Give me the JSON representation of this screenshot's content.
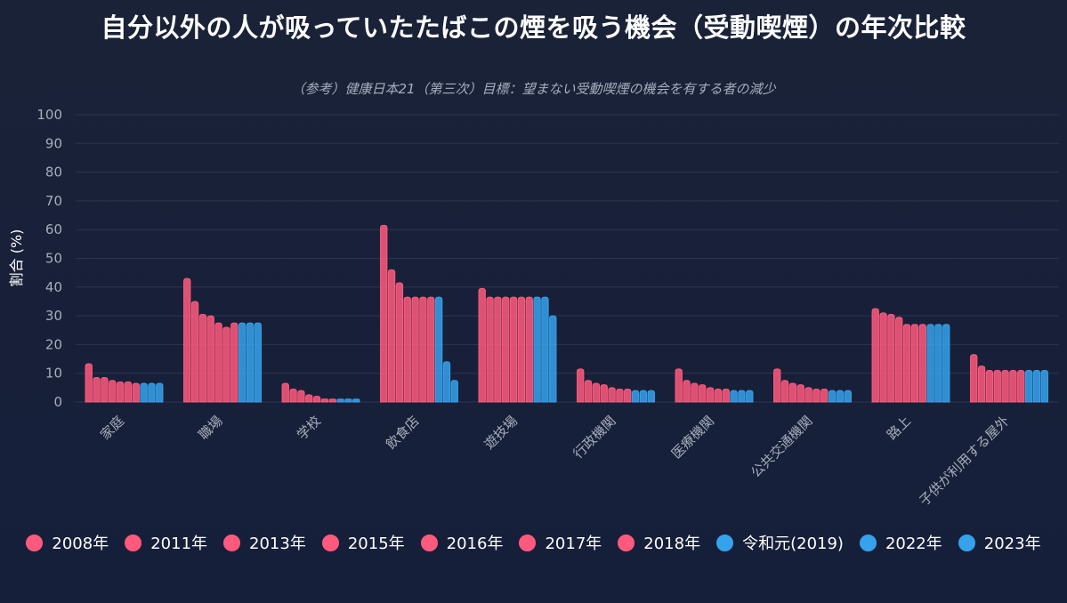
{
  "chart_data": {
    "type": "bar",
    "title": "自分以外の人が吸っていたたばこの煙を吸う機会（受動喫煙）の年次比較",
    "subtitle": "（参考）健康日本21（第三次）目標：望まない受動喫煙の機会を有する者の減少",
    "xlabel": "",
    "ylabel": "割合 (%)",
    "ylim": [
      0,
      100
    ],
    "yticks": [
      0,
      10,
      20,
      30,
      40,
      50,
      60,
      70,
      80,
      90,
      100
    ],
    "grid": true,
    "legend_position": "bottom",
    "categories": [
      "家庭",
      "職場",
      "学校",
      "飲食店",
      "遊技場",
      "行政機関",
      "医療機関",
      "公共交通機関",
      "路上",
      "子供が利用する屋外"
    ],
    "series": [
      {
        "name": "2008年",
        "values": [
          13.3,
          43.0,
          6.5,
          61.5,
          39.5,
          11.5,
          11.5,
          11.5,
          32.5,
          16.5
        ],
        "color": "#ff5a7e"
      },
      {
        "name": "2011年",
        "values": [
          8.5,
          35.0,
          4.5,
          46.0,
          36.5,
          7.5,
          7.5,
          7.5,
          31.0,
          12.5
        ],
        "color": "#ff5a7e"
      },
      {
        "name": "2013年",
        "values": [
          8.5,
          30.5,
          4.0,
          41.5,
          36.5,
          6.5,
          6.5,
          6.5,
          30.5,
          11.0
        ],
        "color": "#ff5a7e"
      },
      {
        "name": "2015年",
        "values": [
          7.5,
          30.0,
          2.5,
          36.5,
          36.5,
          6.0,
          6.0,
          6.0,
          29.5,
          11.0
        ],
        "color": "#ff5a7e"
      },
      {
        "name": "2016年",
        "values": [
          7.0,
          27.5,
          2.0,
          36.5,
          36.5,
          5.0,
          5.0,
          5.0,
          27.0,
          11.0
        ],
        "color": "#ff5a7e"
      },
      {
        "name": "2017年",
        "values": [
          7.0,
          26.0,
          1.0,
          36.5,
          36.5,
          4.5,
          4.5,
          4.5,
          27.0,
          11.0
        ],
        "color": "#ff5a7e"
      },
      {
        "name": "2018年",
        "values": [
          6.5,
          27.5,
          1.0,
          36.5,
          36.5,
          4.5,
          4.5,
          4.5,
          27.0,
          11.0
        ],
        "color": "#ff5a7e"
      },
      {
        "name": "令和元(2019)",
        "values": [
          6.5,
          27.5,
          1.0,
          36.5,
          36.5,
          4.0,
          4.0,
          4.0,
          27.0,
          11.0
        ],
        "color": "#36a2eb"
      },
      {
        "name": "2022年",
        "values": [
          6.5,
          27.5,
          1.0,
          14.0,
          36.5,
          4.0,
          4.0,
          4.0,
          27.0,
          11.0
        ],
        "color": "#36a2eb"
      },
      {
        "name": "2023年",
        "values": [
          6.5,
          27.5,
          1.0,
          7.5,
          30.0,
          4.0,
          4.0,
          4.0,
          27.0,
          11.0
        ],
        "color": "#36a2eb"
      }
    ]
  }
}
